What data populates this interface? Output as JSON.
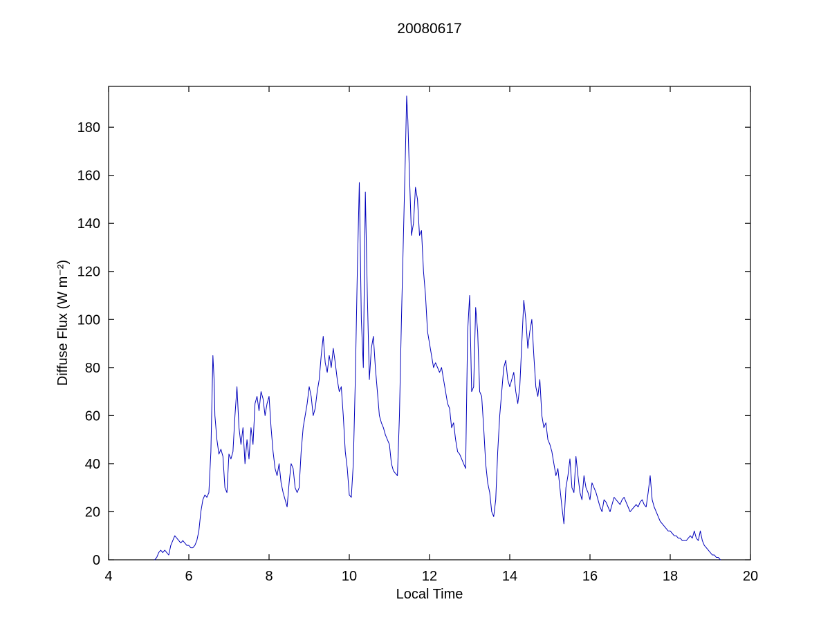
{
  "figure": {
    "title": "20080617"
  },
  "chart_data": {
    "type": "line",
    "title": "20080617",
    "xlabel": "Local Time",
    "ylabel": "Diffuse Flux (W m⁻²)",
    "xlim": [
      4,
      20
    ],
    "ylim": [
      0,
      197
    ],
    "xticks": [
      4,
      6,
      8,
      10,
      12,
      14,
      16,
      18,
      20
    ],
    "yticks": [
      0,
      20,
      40,
      60,
      80,
      100,
      120,
      140,
      160,
      180
    ],
    "grid": false,
    "legend_position": "none",
    "line_color": "#0000bb",
    "axis_color": "#000000",
    "background_color": "#ffffff",
    "points": [
      [
        5.15,
        0
      ],
      [
        5.2,
        1
      ],
      [
        5.25,
        3
      ],
      [
        5.3,
        4
      ],
      [
        5.35,
        3
      ],
      [
        5.4,
        4
      ],
      [
        5.45,
        3
      ],
      [
        5.5,
        2
      ],
      [
        5.55,
        6
      ],
      [
        5.6,
        8
      ],
      [
        5.65,
        10
      ],
      [
        5.7,
        9
      ],
      [
        5.75,
        8
      ],
      [
        5.8,
        7
      ],
      [
        5.85,
        8
      ],
      [
        5.9,
        7
      ],
      [
        5.95,
        6
      ],
      [
        6.0,
        6
      ],
      [
        6.05,
        5
      ],
      [
        6.1,
        5
      ],
      [
        6.15,
        6
      ],
      [
        6.2,
        8
      ],
      [
        6.25,
        12
      ],
      [
        6.3,
        20
      ],
      [
        6.35,
        25
      ],
      [
        6.4,
        27
      ],
      [
        6.45,
        26
      ],
      [
        6.5,
        28
      ],
      [
        6.55,
        45
      ],
      [
        6.6,
        85
      ],
      [
        6.63,
        75
      ],
      [
        6.65,
        60
      ],
      [
        6.7,
        50
      ],
      [
        6.75,
        44
      ],
      [
        6.8,
        46
      ],
      [
        6.85,
        43
      ],
      [
        6.9,
        30
      ],
      [
        6.95,
        28
      ],
      [
        7.0,
        44
      ],
      [
        7.05,
        42
      ],
      [
        7.1,
        45
      ],
      [
        7.15,
        60
      ],
      [
        7.2,
        72
      ],
      [
        7.25,
        55
      ],
      [
        7.3,
        48
      ],
      [
        7.35,
        55
      ],
      [
        7.4,
        40
      ],
      [
        7.45,
        50
      ],
      [
        7.5,
        42
      ],
      [
        7.55,
        55
      ],
      [
        7.6,
        48
      ],
      [
        7.65,
        65
      ],
      [
        7.7,
        68
      ],
      [
        7.75,
        62
      ],
      [
        7.8,
        70
      ],
      [
        7.85,
        67
      ],
      [
        7.9,
        60
      ],
      [
        7.95,
        65
      ],
      [
        8.0,
        68
      ],
      [
        8.05,
        55
      ],
      [
        8.1,
        45
      ],
      [
        8.15,
        38
      ],
      [
        8.2,
        35
      ],
      [
        8.25,
        40
      ],
      [
        8.3,
        32
      ],
      [
        8.35,
        28
      ],
      [
        8.4,
        25
      ],
      [
        8.45,
        22
      ],
      [
        8.5,
        32
      ],
      [
        8.55,
        40
      ],
      [
        8.6,
        38
      ],
      [
        8.65,
        30
      ],
      [
        8.7,
        28
      ],
      [
        8.75,
        30
      ],
      [
        8.8,
        45
      ],
      [
        8.85,
        55
      ],
      [
        8.9,
        60
      ],
      [
        8.95,
        65
      ],
      [
        9.0,
        72
      ],
      [
        9.05,
        68
      ],
      [
        9.1,
        60
      ],
      [
        9.15,
        63
      ],
      [
        9.2,
        70
      ],
      [
        9.25,
        75
      ],
      [
        9.3,
        85
      ],
      [
        9.35,
        93
      ],
      [
        9.4,
        82
      ],
      [
        9.45,
        78
      ],
      [
        9.5,
        85
      ],
      [
        9.55,
        80
      ],
      [
        9.6,
        88
      ],
      [
        9.65,
        82
      ],
      [
        9.7,
        75
      ],
      [
        9.75,
        70
      ],
      [
        9.8,
        72
      ],
      [
        9.85,
        60
      ],
      [
        9.9,
        45
      ],
      [
        9.95,
        38
      ],
      [
        10.0,
        27
      ],
      [
        10.05,
        26
      ],
      [
        10.1,
        40
      ],
      [
        10.15,
        75
      ],
      [
        10.2,
        120
      ],
      [
        10.25,
        157
      ],
      [
        10.3,
        100
      ],
      [
        10.35,
        80
      ],
      [
        10.4,
        153
      ],
      [
        10.45,
        110
      ],
      [
        10.5,
        75
      ],
      [
        10.55,
        88
      ],
      [
        10.6,
        93
      ],
      [
        10.65,
        80
      ],
      [
        10.7,
        70
      ],
      [
        10.75,
        60
      ],
      [
        10.8,
        57
      ],
      [
        10.85,
        55
      ],
      [
        10.9,
        52
      ],
      [
        10.95,
        50
      ],
      [
        11.0,
        48
      ],
      [
        11.05,
        40
      ],
      [
        11.1,
        37
      ],
      [
        11.15,
        36
      ],
      [
        11.2,
        35
      ],
      [
        11.25,
        60
      ],
      [
        11.3,
        100
      ],
      [
        11.35,
        135
      ],
      [
        11.4,
        170
      ],
      [
        11.43,
        193
      ],
      [
        11.46,
        183
      ],
      [
        11.5,
        160
      ],
      [
        11.55,
        135
      ],
      [
        11.6,
        140
      ],
      [
        11.65,
        155
      ],
      [
        11.7,
        150
      ],
      [
        11.75,
        135
      ],
      [
        11.8,
        137
      ],
      [
        11.85,
        120
      ],
      [
        11.9,
        110
      ],
      [
        11.95,
        95
      ],
      [
        12.0,
        90
      ],
      [
        12.05,
        85
      ],
      [
        12.1,
        80
      ],
      [
        12.15,
        82
      ],
      [
        12.2,
        80
      ],
      [
        12.25,
        78
      ],
      [
        12.3,
        80
      ],
      [
        12.35,
        75
      ],
      [
        12.4,
        70
      ],
      [
        12.45,
        65
      ],
      [
        12.5,
        63
      ],
      [
        12.55,
        55
      ],
      [
        12.6,
        57
      ],
      [
        12.65,
        50
      ],
      [
        12.7,
        45
      ],
      [
        12.75,
        44
      ],
      [
        12.8,
        42
      ],
      [
        12.85,
        40
      ],
      [
        12.9,
        38
      ],
      [
        12.95,
        95
      ],
      [
        13.0,
        110
      ],
      [
        13.05,
        70
      ],
      [
        13.1,
        72
      ],
      [
        13.15,
        105
      ],
      [
        13.2,
        95
      ],
      [
        13.25,
        70
      ],
      [
        13.3,
        68
      ],
      [
        13.35,
        55
      ],
      [
        13.4,
        40
      ],
      [
        13.45,
        32
      ],
      [
        13.5,
        28
      ],
      [
        13.55,
        20
      ],
      [
        13.6,
        18
      ],
      [
        13.65,
        25
      ],
      [
        13.7,
        45
      ],
      [
        13.75,
        60
      ],
      [
        13.8,
        70
      ],
      [
        13.85,
        80
      ],
      [
        13.9,
        83
      ],
      [
        13.95,
        75
      ],
      [
        14.0,
        72
      ],
      [
        14.05,
        75
      ],
      [
        14.1,
        78
      ],
      [
        14.15,
        70
      ],
      [
        14.2,
        65
      ],
      [
        14.25,
        72
      ],
      [
        14.3,
        90
      ],
      [
        14.35,
        108
      ],
      [
        14.4,
        100
      ],
      [
        14.45,
        88
      ],
      [
        14.5,
        95
      ],
      [
        14.55,
        100
      ],
      [
        14.6,
        85
      ],
      [
        14.65,
        72
      ],
      [
        14.7,
        68
      ],
      [
        14.75,
        75
      ],
      [
        14.8,
        60
      ],
      [
        14.85,
        55
      ],
      [
        14.9,
        57
      ],
      [
        14.95,
        50
      ],
      [
        15.0,
        48
      ],
      [
        15.05,
        45
      ],
      [
        15.1,
        40
      ],
      [
        15.15,
        35
      ],
      [
        15.2,
        38
      ],
      [
        15.25,
        30
      ],
      [
        15.3,
        22
      ],
      [
        15.35,
        15
      ],
      [
        15.4,
        30
      ],
      [
        15.45,
        35
      ],
      [
        15.5,
        42
      ],
      [
        15.55,
        30
      ],
      [
        15.6,
        28
      ],
      [
        15.65,
        43
      ],
      [
        15.7,
        35
      ],
      [
        15.75,
        28
      ],
      [
        15.8,
        25
      ],
      [
        15.85,
        35
      ],
      [
        15.9,
        30
      ],
      [
        15.95,
        28
      ],
      [
        16.0,
        25
      ],
      [
        16.05,
        32
      ],
      [
        16.1,
        30
      ],
      [
        16.15,
        28
      ],
      [
        16.2,
        25
      ],
      [
        16.25,
        22
      ],
      [
        16.3,
        20
      ],
      [
        16.35,
        25
      ],
      [
        16.4,
        24
      ],
      [
        16.45,
        22
      ],
      [
        16.5,
        20
      ],
      [
        16.55,
        23
      ],
      [
        16.6,
        26
      ],
      [
        16.65,
        25
      ],
      [
        16.7,
        24
      ],
      [
        16.75,
        23
      ],
      [
        16.8,
        25
      ],
      [
        16.85,
        26
      ],
      [
        16.9,
        24
      ],
      [
        16.95,
        22
      ],
      [
        17.0,
        20
      ],
      [
        17.05,
        21
      ],
      [
        17.1,
        22
      ],
      [
        17.15,
        23
      ],
      [
        17.2,
        22
      ],
      [
        17.25,
        24
      ],
      [
        17.3,
        25
      ],
      [
        17.35,
        23
      ],
      [
        17.4,
        22
      ],
      [
        17.45,
        28
      ],
      [
        17.5,
        35
      ],
      [
        17.55,
        25
      ],
      [
        17.6,
        22
      ],
      [
        17.65,
        20
      ],
      [
        17.7,
        18
      ],
      [
        17.75,
        16
      ],
      [
        17.8,
        15
      ],
      [
        17.85,
        14
      ],
      [
        17.9,
        13
      ],
      [
        17.95,
        12
      ],
      [
        18.0,
        12
      ],
      [
        18.05,
        11
      ],
      [
        18.1,
        10
      ],
      [
        18.15,
        10
      ],
      [
        18.2,
        9
      ],
      [
        18.25,
        9
      ],
      [
        18.3,
        8
      ],
      [
        18.35,
        8
      ],
      [
        18.4,
        8
      ],
      [
        18.45,
        9
      ],
      [
        18.5,
        10
      ],
      [
        18.55,
        9
      ],
      [
        18.6,
        12
      ],
      [
        18.65,
        9
      ],
      [
        18.7,
        8
      ],
      [
        18.75,
        12
      ],
      [
        18.8,
        8
      ],
      [
        18.85,
        6
      ],
      [
        18.9,
        5
      ],
      [
        18.95,
        4
      ],
      [
        19.0,
        3
      ],
      [
        19.05,
        2
      ],
      [
        19.1,
        2
      ],
      [
        19.15,
        1
      ],
      [
        19.2,
        1
      ],
      [
        19.25,
        0
      ]
    ]
  }
}
